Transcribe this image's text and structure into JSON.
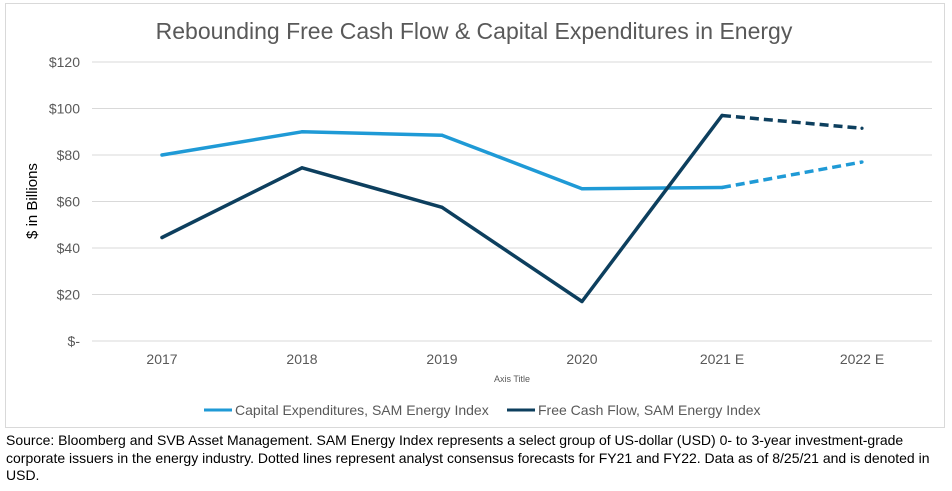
{
  "chart_data": {
    "type": "line",
    "title": "Rebounding Free Cash Flow & Capital Expenditures in Energy",
    "xlabel": "Axis Title",
    "ylabel": "$ in Billions",
    "categories": [
      "2017",
      "2018",
      "2019",
      "2020",
      "2021 E",
      "2022 E"
    ],
    "ylim": [
      0,
      120
    ],
    "yticks": [
      0,
      20,
      40,
      60,
      80,
      100,
      120
    ],
    "ytick_labels": [
      "$-",
      "$20",
      "$40",
      "$60",
      "$80",
      "$100",
      "$120"
    ],
    "grid": true,
    "legend": "bottom",
    "forecast_categories": [
      "2021 E",
      "2022 E"
    ],
    "series": [
      {
        "name": "Capital Expenditures, SAM Energy Index",
        "color": "#1f9ad6",
        "values": [
          80,
          90,
          88.5,
          65.5,
          66,
          77
        ]
      },
      {
        "name": "Free Cash Flow, SAM Energy Index",
        "color": "#0d3f5e",
        "values": [
          44.5,
          74.5,
          57.5,
          17,
          97,
          91.5
        ]
      }
    ]
  },
  "source_note": "Source: Bloomberg and SVB Asset Management. SAM Energy Index represents a select group of US-dollar (USD) 0- to 3-year investment-grade corporate issuers in the energy industry. Dotted lines represent analyst consensus forecasts for FY21 and FY22. Data as of 8/25/21 and is denoted in USD."
}
